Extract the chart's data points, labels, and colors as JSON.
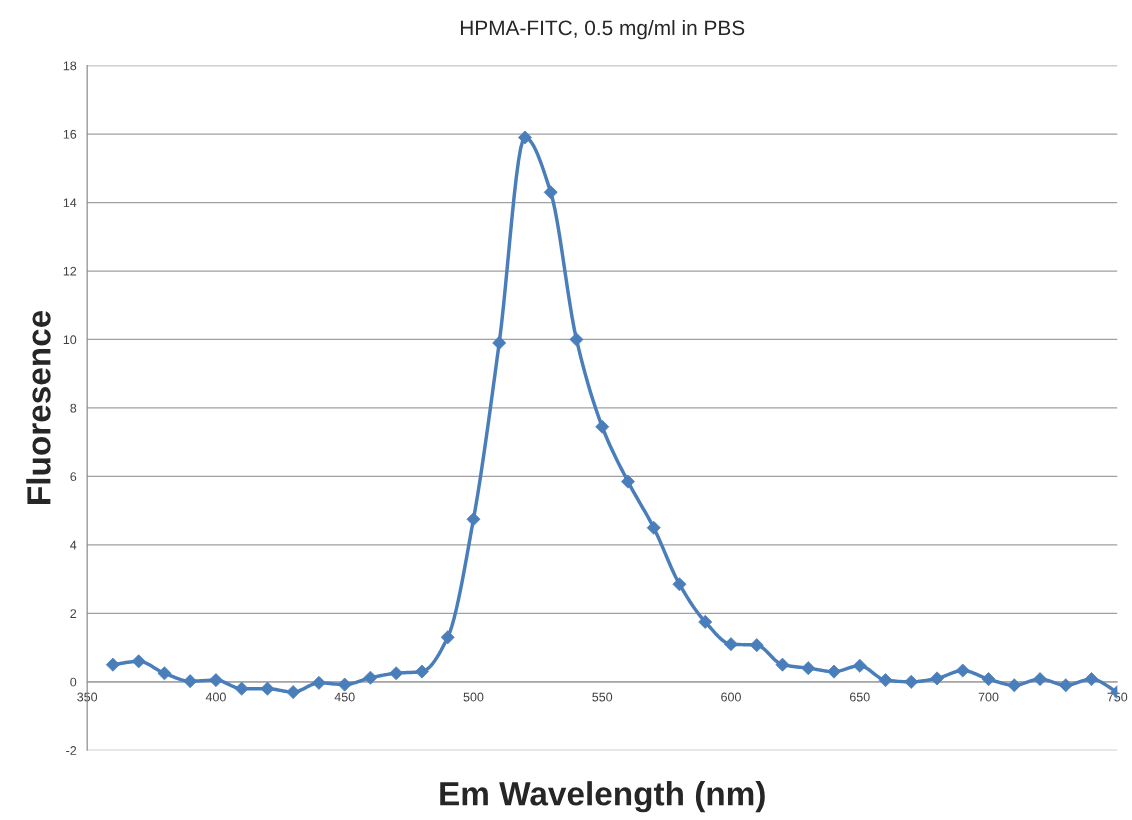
{
  "chart_data": {
    "type": "line",
    "title": "HPMA-FITC, 0.5 mg/ml in PBS",
    "xlabel": "Em Wavelength (nm)",
    "ylabel": "Fluoresence",
    "x": [
      360,
      370,
      380,
      390,
      400,
      410,
      420,
      430,
      440,
      450,
      460,
      470,
      480,
      490,
      500,
      510,
      520,
      530,
      540,
      550,
      560,
      570,
      580,
      590,
      600,
      610,
      620,
      630,
      640,
      650,
      660,
      670,
      680,
      690,
      700,
      710,
      720,
      730,
      740,
      750
    ],
    "series": [
      {
        "color": "#4a7ebb",
        "values": [
          0.5,
          0.6,
          0.25,
          0.02,
          0.05,
          -0.2,
          -0.2,
          -0.3,
          -0.03,
          -0.08,
          0.12,
          0.25,
          0.3,
          1.3,
          4.75,
          9.9,
          15.9,
          14.3,
          10.0,
          7.45,
          5.85,
          4.5,
          2.85,
          1.75,
          1.1,
          1.07,
          0.5,
          0.4,
          0.3,
          0.47,
          0.05,
          0.0,
          0.1,
          0.33,
          0.08,
          -0.1,
          0.08,
          -0.1,
          0.08,
          -0.3
        ]
      }
    ],
    "xlim": [
      350,
      750
    ],
    "xticks": [
      {
        "value": 350,
        "label": "350"
      },
      400,
      450,
      500,
      550,
      600,
      650,
      700,
      750
    ],
    "ylim": [
      -2,
      18
    ],
    "yticks": [
      -2,
      0,
      2,
      4,
      6,
      8,
      10,
      12,
      14,
      16,
      18
    ],
    "grid": "y",
    "marker": "diamond",
    "line_style": "solid"
  }
}
